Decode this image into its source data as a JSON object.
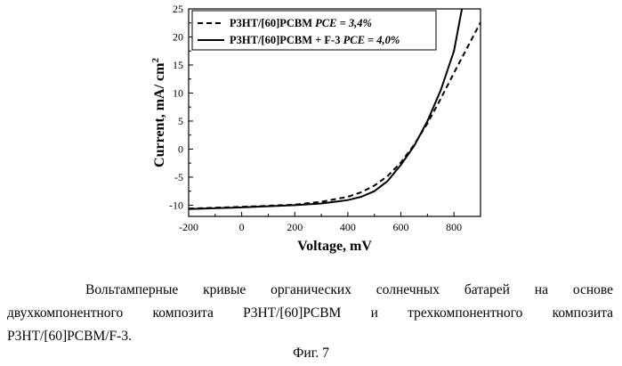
{
  "chart_data": {
    "type": "line",
    "xlabel": "Voltage, mV",
    "ylabel": "Current, mA/ cm",
    "ylabel_superscript": "2",
    "xlim": [
      -200,
      900
    ],
    "ylim": [
      -12,
      25
    ],
    "x_ticks": [
      -200,
      0,
      200,
      400,
      600,
      800
    ],
    "y_ticks": [
      -10,
      -5,
      0,
      5,
      10,
      15,
      20,
      25
    ],
    "grid": false,
    "legend_position": "top-left",
    "series": [
      {
        "name": "P3HT/[60]PCBM",
        "pce_label": "PCE = 3,4%",
        "style": "dashed",
        "color": "#000000",
        "x": [
          -200,
          0,
          200,
          300,
          400,
          450,
          500,
          550,
          600,
          650,
          700,
          750,
          800,
          850,
          900
        ],
        "y": [
          -10.6,
          -10.3,
          -9.9,
          -9.4,
          -8.5,
          -7.7,
          -6.5,
          -4.8,
          -2.4,
          0.8,
          4.6,
          9.0,
          13.6,
          18.1,
          22.6
        ]
      },
      {
        "name": "P3HT/[60]PCBM + F-3",
        "pce_label": "PCE = 4,0%",
        "style": "solid",
        "color": "#000000",
        "x": [
          -200,
          0,
          200,
          300,
          400,
          450,
          500,
          550,
          600,
          650,
          700,
          750,
          800,
          830
        ],
        "y": [
          -10.7,
          -10.4,
          -10.0,
          -9.7,
          -9.1,
          -8.5,
          -7.5,
          -5.7,
          -2.8,
          0.6,
          5.0,
          10.5,
          17.5,
          25.0
        ]
      }
    ]
  },
  "caption": {
    "line1": [
      "Вольтамперные",
      "кривые",
      "органических",
      "солнечных",
      "батарей",
      "на",
      "основе"
    ],
    "line2": [
      "двухкомпонентного",
      "композита",
      "P3HT/[60]PCBM",
      "и",
      "трехкомпонентного",
      "композита"
    ],
    "line3": "P3HT/[60]PCBM/F-3.",
    "figure": "Фиг. 7"
  }
}
